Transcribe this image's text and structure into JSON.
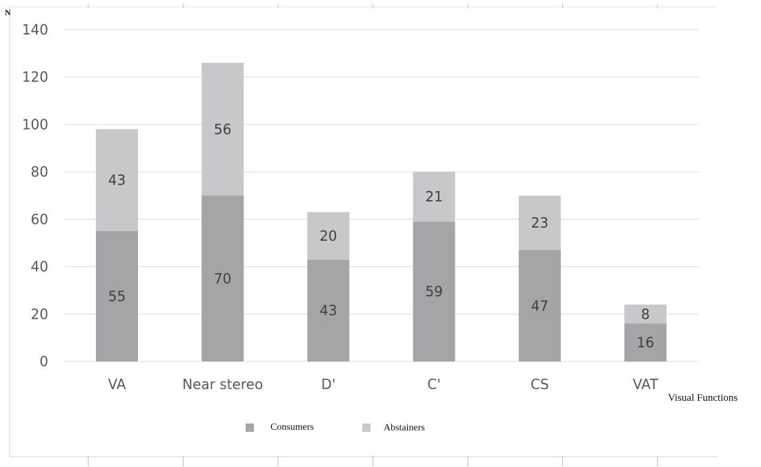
{
  "chart_data": {
    "type": "bar",
    "stacked": true,
    "categories": [
      "VA",
      "Near stereo",
      "D'",
      "C'",
      "CS",
      "VAT"
    ],
    "series": [
      {
        "name": "Consumers",
        "values": [
          55,
          70,
          43,
          59,
          47,
          16
        ],
        "color": "#a5a5a7"
      },
      {
        "name": "Abstainers",
        "values": [
          43,
          56,
          20,
          21,
          23,
          8
        ],
        "color": "#c8c8ca"
      }
    ],
    "ylabel": "N",
    "xlabel": "Visual Functions",
    "ylim": [
      0,
      140
    ],
    "yticks": [
      0,
      20,
      40,
      60,
      80,
      100,
      120,
      140
    ],
    "grid": true,
    "legend": "bottom-center",
    "gridColor": "#d9d9d9"
  }
}
